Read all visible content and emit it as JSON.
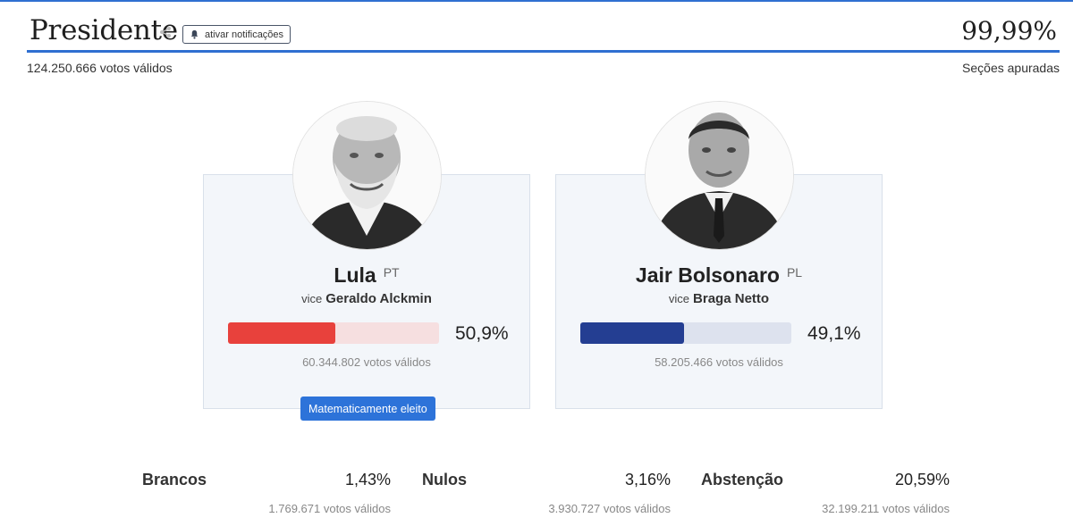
{
  "header": {
    "title": "Presidente",
    "notify_label": "ativar notificações",
    "counted_percent": "99,99%",
    "total_valid_votes": "124.250.666 votos válidos",
    "sections_label": "Seções apuradas",
    "accent_color": "#2f6fd1"
  },
  "candidates": [
    {
      "name": "Lula",
      "party": "PT",
      "vice_label": "vice",
      "vice_name": "Geraldo Alckmin",
      "percent": "50,9%",
      "bar_fraction": 0.509,
      "bar_color": "#e8413c",
      "votes": "60.344.802 votos válidos",
      "badge": "Matematicamente eleito"
    },
    {
      "name": "Jair Bolsonaro",
      "party": "PL",
      "vice_label": "vice",
      "vice_name": "Braga Netto",
      "percent": "49,1%",
      "bar_fraction": 0.491,
      "bar_color": "#243e92",
      "votes": "58.205.466 votos válidos"
    }
  ],
  "stats": [
    {
      "label": "Brancos",
      "percent": "1,43%",
      "votes": "1.769.671 votos válidos"
    },
    {
      "label": "Nulos",
      "percent": "3,16%",
      "votes": "3.930.727 votos válidos"
    },
    {
      "label": "Abstenção",
      "percent": "20,59%",
      "votes": "32.199.211 votos válidos"
    }
  ],
  "icons": {
    "share": "share-icon",
    "bell": "bell-icon"
  }
}
